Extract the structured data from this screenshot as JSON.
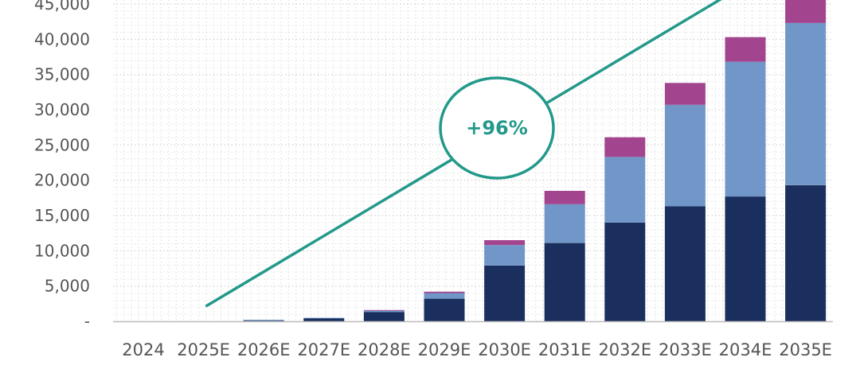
{
  "chart_data": {
    "type": "bar",
    "stacked": true,
    "categories": [
      "2024",
      "2025E",
      "2026E",
      "2027E",
      "2028E",
      "2029E",
      "2030E",
      "2031E",
      "2032E",
      "2033E",
      "2034E",
      "2035E"
    ],
    "series": [
      {
        "color": "#1b2f5e",
        "values": [
          0,
          0,
          100,
          400,
          1300,
          3200,
          7900,
          11100,
          14000,
          16300,
          17700,
          19300
        ]
      },
      {
        "color": "#7197c9",
        "values": [
          0,
          0,
          100,
          100,
          200,
          800,
          2900,
          5500,
          9300,
          14400,
          19100,
          23000
        ]
      },
      {
        "color": "#a3448e",
        "values": [
          0,
          0,
          0,
          0,
          100,
          200,
          700,
          1900,
          2800,
          3100,
          3500,
          4400
        ]
      }
    ],
    "y_ticks": [
      "-",
      "5,000",
      "10,000",
      "15,000",
      "20,000",
      "25,000",
      "30,000",
      "35,000",
      "40,000",
      "45,000"
    ],
    "ylim": [
      0,
      45000
    ],
    "y_tick_step": 5000,
    "grid": true,
    "trend_line": {
      "color": "#23998a",
      "from": {
        "category": "2025E",
        "value": 2200
      },
      "to": {
        "category": "2035E",
        "value": 48000
      }
    },
    "annotation": {
      "text": "+96%",
      "color": "#23998a"
    }
  }
}
